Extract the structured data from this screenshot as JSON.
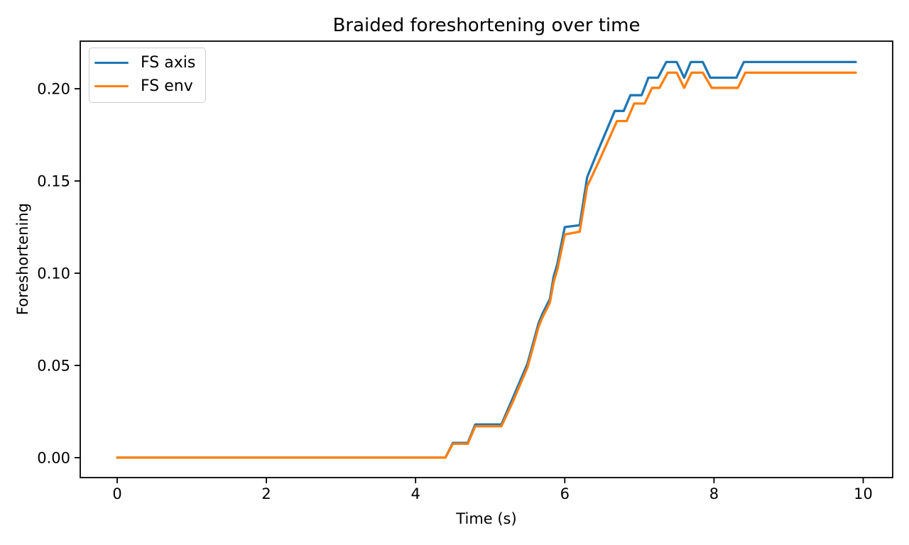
{
  "page": {
    "background": "#ffffff"
  },
  "chart_data": {
    "type": "line",
    "title": "Braided foreshortening over time",
    "xlabel": "Time (s)",
    "ylabel": "Foreshortening",
    "xlim": [
      -0.495,
      10.395
    ],
    "ylim": [
      -0.0108,
      0.2258
    ],
    "xticks": [
      0,
      2,
      4,
      6,
      8,
      10
    ],
    "xtick_labels": [
      "0",
      "2",
      "4",
      "6",
      "8",
      "10"
    ],
    "yticks": [
      0.0,
      0.05,
      0.1,
      0.15,
      0.2
    ],
    "ytick_labels": [
      "0.00",
      "0.05",
      "0.10",
      "0.15",
      "0.20"
    ],
    "grid": false,
    "legend_position": "upper-left",
    "axis_color": "#000000",
    "series": [
      {
        "name": "FS axis",
        "color": "#1f77b4",
        "points": [
          [
            0.0,
            0.0
          ],
          [
            4.4,
            0.0
          ],
          [
            4.5,
            0.008
          ],
          [
            4.7,
            0.008
          ],
          [
            4.8,
            0.018
          ],
          [
            5.15,
            0.018
          ],
          [
            5.3,
            0.032
          ],
          [
            5.5,
            0.051
          ],
          [
            5.65,
            0.073
          ],
          [
            5.7,
            0.078
          ],
          [
            5.8,
            0.086
          ],
          [
            5.85,
            0.098
          ],
          [
            5.9,
            0.105
          ],
          [
            6.0,
            0.125
          ],
          [
            6.2,
            0.126
          ],
          [
            6.3,
            0.152
          ],
          [
            6.43,
            0.165
          ],
          [
            6.67,
            0.188
          ],
          [
            6.79,
            0.188
          ],
          [
            6.88,
            0.1965
          ],
          [
            7.03,
            0.1965
          ],
          [
            7.12,
            0.206
          ],
          [
            7.25,
            0.206
          ],
          [
            7.36,
            0.2145
          ],
          [
            7.5,
            0.2145
          ],
          [
            7.6,
            0.206
          ],
          [
            7.69,
            0.2145
          ],
          [
            7.85,
            0.2145
          ],
          [
            7.95,
            0.206
          ],
          [
            8.3,
            0.206
          ],
          [
            8.4,
            0.2145
          ],
          [
            9.9,
            0.2145
          ]
        ]
      },
      {
        "name": "FS env",
        "color": "#ff7f0e",
        "points": [
          [
            0.0,
            0.0
          ],
          [
            4.4,
            0.0
          ],
          [
            4.5,
            0.0075
          ],
          [
            4.7,
            0.0075
          ],
          [
            4.8,
            0.017
          ],
          [
            5.15,
            0.017
          ],
          [
            5.3,
            0.03
          ],
          [
            5.5,
            0.049
          ],
          [
            5.65,
            0.071
          ],
          [
            5.7,
            0.076
          ],
          [
            5.8,
            0.084
          ],
          [
            5.85,
            0.095
          ],
          [
            5.9,
            0.102
          ],
          [
            6.0,
            0.121
          ],
          [
            6.2,
            0.1225
          ],
          [
            6.3,
            0.147
          ],
          [
            6.45,
            0.16
          ],
          [
            6.7,
            0.1825
          ],
          [
            6.83,
            0.1825
          ],
          [
            6.93,
            0.192
          ],
          [
            7.07,
            0.192
          ],
          [
            7.17,
            0.2005
          ],
          [
            7.27,
            0.2005
          ],
          [
            7.38,
            0.2087
          ],
          [
            7.5,
            0.2087
          ],
          [
            7.6,
            0.2005
          ],
          [
            7.7,
            0.2087
          ],
          [
            7.85,
            0.2087
          ],
          [
            7.97,
            0.2005
          ],
          [
            8.32,
            0.2005
          ],
          [
            8.42,
            0.2087
          ],
          [
            9.9,
            0.2087
          ]
        ]
      }
    ]
  }
}
